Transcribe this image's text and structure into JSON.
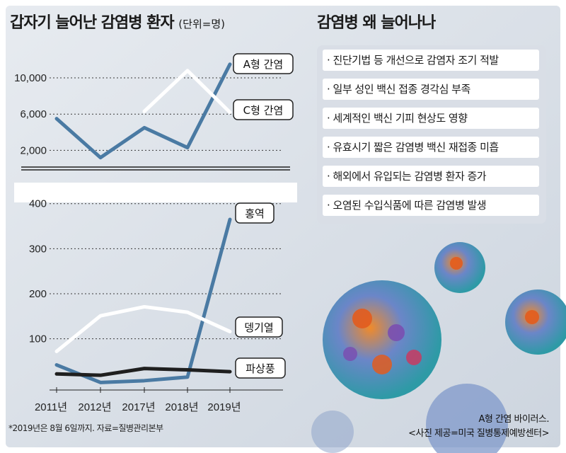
{
  "left_panel": {
    "title": "갑자기 늘어난 감염병 환자",
    "unit": "(단위=명)"
  },
  "right_panel": {
    "title": "감염병 왜 늘어나나",
    "reasons": [
      "· 진단기법 등 개선으로 감염자 조기 적발",
      "· 일부 성인 백신 접종 경각심 부족",
      "· 세계적인 백신 기피 현상도 영향",
      "· 유효시기 짧은 감염병 백신 재접종 미흡",
      "· 해외에서 유입되는 감염병 환자 증가",
      "· 오염된 수입식품에 따른 감염병 발생"
    ],
    "photo_caption": [
      "A형 간염 바이러스.",
      "<사진 제공=미국 질병통제예방센터>"
    ]
  },
  "footnote": "*2019년은 8월 6일까지. 자료=질병관리본부",
  "colors": {
    "plot_bg": "#a5b1c1",
    "series_blue": "#4a7aa3",
    "series_white": "#ffffff",
    "series_black": "#1f1f1f"
  },
  "chart_data": [
    {
      "type": "line",
      "title": "갑자기 늘어난 감염병 환자",
      "ylabel": "(단위=명)",
      "categories": [
        "2011년",
        "2012년",
        "2017년",
        "2018년",
        "2019년"
      ],
      "yticks": [
        "2,000",
        "6,000",
        "10,000"
      ],
      "ylim": [
        0,
        12500
      ],
      "series": [
        {
          "name": "A형 간염",
          "values": [
            5500,
            1200,
            4500,
            2300,
            11500
          ]
        },
        {
          "name": "C형 간염",
          "values": [
            null,
            null,
            6300,
            10800,
            6200
          ]
        }
      ]
    },
    {
      "type": "line",
      "categories": [
        "2011년",
        "2012년",
        "2017년",
        "2018년",
        "2019년"
      ],
      "yticks": [
        "100",
        "200",
        "300",
        "400"
      ],
      "ylim": [
        -20,
        420
      ],
      "series": [
        {
          "name": "홍역",
          "values": [
            42,
            3,
            7,
            15,
            365
          ]
        },
        {
          "name": "뎅기열",
          "values": [
            72,
            151,
            171,
            159,
            116
          ]
        },
        {
          "name": "파상풍",
          "values": [
            22,
            19,
            34,
            31,
            27
          ]
        }
      ]
    }
  ]
}
